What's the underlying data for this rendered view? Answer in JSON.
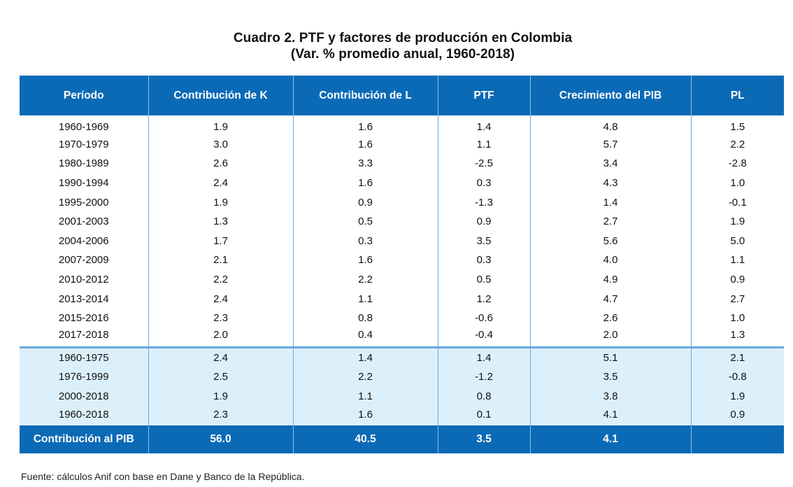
{
  "title": {
    "line1": "Cuadro 2. PTF y factores de producción en Colombia",
    "line2": "(Var. % promedio anual, 1960-2018)"
  },
  "table": {
    "headers": [
      "Período",
      "Contribución de K",
      "Contribución de L",
      "PTF",
      "Crecimiento del PIB",
      "PL"
    ],
    "rows": [
      [
        "1960-1969",
        "1.9",
        "1.6",
        "1.4",
        "4.8",
        "1.5"
      ],
      [
        "1970-1979",
        "3.0",
        "1.6",
        "1.1",
        "5.7",
        "2.2"
      ],
      [
        "1980-1989",
        "2.6",
        "3.3",
        "-2.5",
        "3.4",
        "-2.8"
      ],
      [
        "1990-1994",
        "2.4",
        "1.6",
        "0.3",
        "4.3",
        "1.0"
      ],
      [
        "1995-2000",
        "1.9",
        "0.9",
        "-1.3",
        "1.4",
        "-0.1"
      ],
      [
        "2001-2003",
        "1.3",
        "0.5",
        "0.9",
        "2.7",
        "1.9"
      ],
      [
        "2004-2006",
        "1.7",
        "0.3",
        "3.5",
        "5.6",
        "5.0"
      ],
      [
        "2007-2009",
        "2.1",
        "1.6",
        "0.3",
        "4.0",
        "1.1"
      ],
      [
        "2010-2012",
        "2.2",
        "2.2",
        "0.5",
        "4.9",
        "0.9"
      ],
      [
        "2013-2014",
        "2.4",
        "1.1",
        "1.2",
        "4.7",
        "2.7"
      ],
      [
        "2015-2016",
        "2.3",
        "0.8",
        "-0.6",
        "2.6",
        "1.0"
      ],
      [
        "2017-2018",
        "2.0",
        "0.4",
        "-0.4",
        "2.0",
        "1.3"
      ]
    ],
    "summary_rows": [
      [
        "1960-1975",
        "2.4",
        "1.4",
        "1.4",
        "5.1",
        "2.1"
      ],
      [
        "1976-1999",
        "2.5",
        "2.2",
        "-1.2",
        "3.5",
        "-0.8"
      ],
      [
        "2000-2018",
        "1.9",
        "1.1",
        "0.8",
        "3.8",
        "1.9"
      ],
      [
        "1960-2018",
        "2.3",
        "1.6",
        "0.1",
        "4.1",
        "0.9"
      ]
    ],
    "footer": [
      "Contribución al PIB",
      "56.0",
      "40.5",
      "3.5",
      "4.1",
      ""
    ]
  },
  "source": "Fuente: cálculos Anif con base en Dane y Banco de la República.",
  "colors": {
    "header_bg": "#0b6ab6",
    "summary_bg": "#dcf0fb",
    "grid_line": "#6aa8dc"
  }
}
